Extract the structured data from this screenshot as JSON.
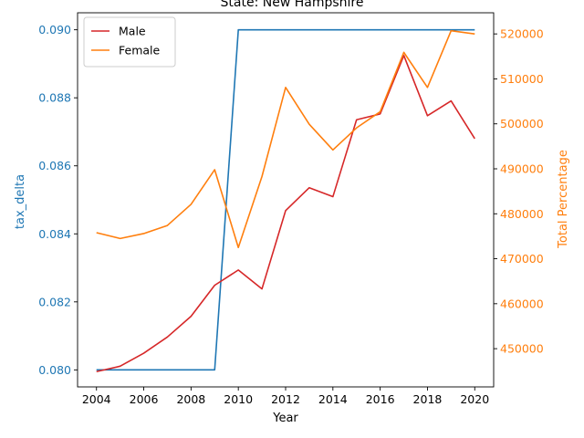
{
  "chart_data": {
    "type": "line",
    "title": "State: New Hampshire",
    "xlabel": "Year",
    "ylabel_left": "tax_delta",
    "ylabel_right": "Total Percentage",
    "x": [
      2004,
      2005,
      2006,
      2007,
      2008,
      2009,
      2010,
      2011,
      2012,
      2013,
      2014,
      2015,
      2016,
      2017,
      2018,
      2019,
      2020
    ],
    "xticks": [
      "2004",
      "2006",
      "2008",
      "2010",
      "2012",
      "2014",
      "2016",
      "2018",
      "2020"
    ],
    "xlim": [
      2003.2,
      2020.8
    ],
    "left_axis": {
      "ylim": [
        0.0795,
        0.0905
      ],
      "ticks": [
        "0.080",
        "0.082",
        "0.084",
        "0.086",
        "0.088",
        "0.090"
      ],
      "color": "#1f77b4"
    },
    "right_axis": {
      "ylim": [
        441500,
        524700
      ],
      "ticks": [
        "450000",
        "460000",
        "470000",
        "480000",
        "490000",
        "500000",
        "510000",
        "520000"
      ],
      "color": "#ff7f0e"
    },
    "series": [
      {
        "axis": "left",
        "color": "#1f77b4",
        "values": [
          0.08,
          0.08,
          0.08,
          0.08,
          0.08,
          0.08,
          0.09,
          0.09,
          0.09,
          0.09,
          0.09,
          0.09,
          0.09,
          0.09,
          0.09,
          0.09,
          0.09
        ]
      },
      {
        "name": "Male",
        "axis": "right",
        "color": "#d62728",
        "values": [
          444900,
          446100,
          449000,
          452600,
          457200,
          464100,
          467500,
          463300,
          480700,
          485800,
          483800,
          500900,
          502200,
          515200,
          501800,
          505100,
          496700
        ]
      },
      {
        "name": "Female",
        "axis": "right",
        "color": "#ff7f0e",
        "values": [
          475800,
          474500,
          475600,
          477400,
          482100,
          489800,
          472500,
          488300,
          508100,
          499900,
          494200,
          499100,
          502700,
          515900,
          508100,
          520700,
          520000
        ]
      }
    ],
    "legend": {
      "placement": "top-left",
      "entries": [
        "Male",
        "Female"
      ]
    },
    "grid": false
  }
}
